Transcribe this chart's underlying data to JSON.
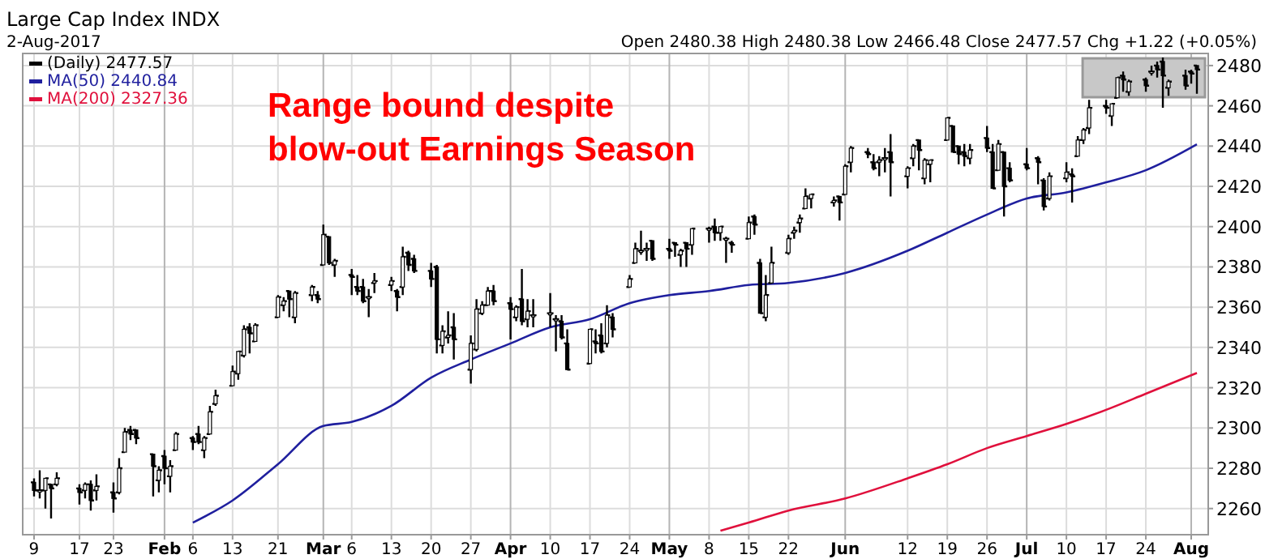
{
  "chart_data": {
    "type": "candlestick",
    "title": "Large Cap Index INDX",
    "subtitle": "2-Aug-2017",
    "annotations": [
      "Open 2480.38 High 2480.38 Low 2466.48 Close 2477.57 Chg +1.22 (+0.05%)",
      "Range bound despite\nblow-out Earnings Season"
    ],
    "x": [
      "2017-01-09",
      "2017-01-10",
      "2017-01-11",
      "2017-01-12",
      "2017-01-13",
      "2017-01-17",
      "2017-01-18",
      "2017-01-19",
      "2017-01-20",
      "2017-01-23",
      "2017-01-24",
      "2017-01-25",
      "2017-01-26",
      "2017-01-27",
      "2017-01-30",
      "2017-01-31",
      "2017-02-01",
      "2017-02-02",
      "2017-02-03",
      "2017-02-06",
      "2017-02-07",
      "2017-02-08",
      "2017-02-09",
      "2017-02-10",
      "2017-02-13",
      "2017-02-14",
      "2017-02-15",
      "2017-02-16",
      "2017-02-17",
      "2017-02-21",
      "2017-02-22",
      "2017-02-23",
      "2017-02-24",
      "2017-02-27",
      "2017-02-28",
      "2017-03-01",
      "2017-03-02",
      "2017-03-03",
      "2017-03-06",
      "2017-03-07",
      "2017-03-08",
      "2017-03-09",
      "2017-03-10",
      "2017-03-13",
      "2017-03-14",
      "2017-03-15",
      "2017-03-16",
      "2017-03-17",
      "2017-03-20",
      "2017-03-21",
      "2017-03-22",
      "2017-03-23",
      "2017-03-24",
      "2017-03-27",
      "2017-03-28",
      "2017-03-29",
      "2017-03-30",
      "2017-03-31",
      "2017-04-03",
      "2017-04-04",
      "2017-04-05",
      "2017-04-06",
      "2017-04-07",
      "2017-04-10",
      "2017-04-11",
      "2017-04-12",
      "2017-04-13",
      "2017-04-17",
      "2017-04-18",
      "2017-04-19",
      "2017-04-20",
      "2017-04-21",
      "2017-04-24",
      "2017-04-25",
      "2017-04-26",
      "2017-04-27",
      "2017-04-28",
      "2017-05-01",
      "2017-05-02",
      "2017-05-03",
      "2017-05-04",
      "2017-05-05",
      "2017-05-08",
      "2017-05-09",
      "2017-05-10",
      "2017-05-11",
      "2017-05-12",
      "2017-05-15",
      "2017-05-16",
      "2017-05-17",
      "2017-05-18",
      "2017-05-19",
      "2017-05-22",
      "2017-05-23",
      "2017-05-24",
      "2017-05-25",
      "2017-05-26",
      "2017-05-30",
      "2017-05-31",
      "2017-06-01",
      "2017-06-02",
      "2017-06-05",
      "2017-06-06",
      "2017-06-07",
      "2017-06-08",
      "2017-06-09",
      "2017-06-12",
      "2017-06-13",
      "2017-06-14",
      "2017-06-15",
      "2017-06-16",
      "2017-06-19",
      "2017-06-20",
      "2017-06-21",
      "2017-06-22",
      "2017-06-23",
      "2017-06-26",
      "2017-06-27",
      "2017-06-28",
      "2017-06-29",
      "2017-06-30",
      "2017-07-03",
      "2017-07-05",
      "2017-07-06",
      "2017-07-07",
      "2017-07-10",
      "2017-07-11",
      "2017-07-12",
      "2017-07-13",
      "2017-07-14",
      "2017-07-17",
      "2017-07-18",
      "2017-07-19",
      "2017-07-20",
      "2017-07-21",
      "2017-07-24",
      "2017-07-25",
      "2017-07-26",
      "2017-07-27",
      "2017-07-28",
      "2017-07-31",
      "2017-08-01",
      "2017-08-02"
    ],
    "xlim": [
      "2017-01-07",
      "2017-08-04"
    ],
    "series": [
      {
        "name": "(Daily) 2477.57",
        "color": "#000000",
        "type": "candlestick",
        "ohlc": [
          [
            2273,
            2275,
            2266,
            2269
          ],
          [
            2269,
            2279,
            2265,
            2269
          ],
          [
            2269,
            2275,
            2260,
            2275
          ],
          [
            2272,
            2272,
            2255,
            2270
          ],
          [
            2272,
            2278,
            2271,
            2275
          ],
          [
            2270,
            2272,
            2262,
            2268
          ],
          [
            2269,
            2273,
            2265,
            2272
          ],
          [
            2272,
            2274,
            2259,
            2264
          ],
          [
            2269,
            2277,
            2264,
            2271
          ],
          [
            2268,
            2273,
            2258,
            2265
          ],
          [
            2268,
            2285,
            2267,
            2280
          ],
          [
            2288,
            2300,
            2288,
            2298
          ],
          [
            2299,
            2301,
            2294,
            2297
          ],
          [
            2299,
            2299,
            2292,
            2295
          ],
          [
            2287,
            2287,
            2266,
            2281
          ],
          [
            2274,
            2281,
            2268,
            2279
          ],
          [
            2286,
            2289,
            2272,
            2280
          ],
          [
            2276,
            2284,
            2268,
            2281
          ],
          [
            2289,
            2298,
            2289,
            2297
          ],
          [
            2295,
            2296,
            2289,
            2293
          ],
          [
            2297,
            2301,
            2292,
            2293
          ],
          [
            2289,
            2296,
            2285,
            2295
          ],
          [
            2297,
            2311,
            2297,
            2308
          ],
          [
            2312,
            2319,
            2311,
            2316
          ],
          [
            2321,
            2331,
            2321,
            2328
          ],
          [
            2327,
            2338,
            2324,
            2338
          ],
          [
            2336,
            2351,
            2335,
            2349
          ],
          [
            2350,
            2352,
            2337,
            2347
          ],
          [
            2343,
            2352,
            2343,
            2351
          ],
          [
            2355,
            2366,
            2355,
            2365
          ],
          [
            2361,
            2365,
            2358,
            2363
          ],
          [
            2368,
            2368,
            2355,
            2364
          ],
          [
            2355,
            2368,
            2352,
            2367
          ],
          [
            2366,
            2371,
            2363,
            2370
          ],
          [
            2366,
            2368,
            2362,
            2364
          ],
          [
            2381,
            2401,
            2381,
            2396
          ],
          [
            2395,
            2395,
            2381,
            2382
          ],
          [
            2381,
            2384,
            2375,
            2383
          ],
          [
            2376,
            2379,
            2366,
            2375
          ],
          [
            2370,
            2376,
            2366,
            2368
          ],
          [
            2370,
            2374,
            2362,
            2363
          ],
          [
            2365,
            2369,
            2355,
            2365
          ],
          [
            2372,
            2377,
            2367,
            2373
          ],
          [
            2371,
            2375,
            2368,
            2373
          ],
          [
            2368,
            2369,
            2358,
            2365
          ],
          [
            2370,
            2390,
            2366,
            2385
          ],
          [
            2387,
            2388,
            2378,
            2381
          ],
          [
            2384,
            2386,
            2377,
            2378
          ],
          [
            2378,
            2382,
            2370,
            2374
          ],
          [
            2380,
            2381,
            2337,
            2344
          ],
          [
            2341,
            2351,
            2337,
            2348
          ],
          [
            2345,
            2358,
            2342,
            2346
          ],
          [
            2350,
            2357,
            2334,
            2344
          ],
          [
            2329,
            2346,
            2322,
            2342
          ],
          [
            2339,
            2364,
            2338,
            2359
          ],
          [
            2357,
            2363,
            2356,
            2361
          ],
          [
            2361,
            2370,
            2361,
            2368
          ],
          [
            2368,
            2371,
            2361,
            2363
          ],
          [
            2362,
            2365,
            2344,
            2359
          ],
          [
            2355,
            2361,
            2353,
            2360
          ],
          [
            2364,
            2379,
            2351,
            2353
          ],
          [
            2354,
            2364,
            2350,
            2358
          ],
          [
            2356,
            2364,
            2350,
            2356
          ],
          [
            2357,
            2367,
            2350,
            2357
          ],
          [
            2354,
            2356,
            2338,
            2354
          ],
          [
            2353,
            2356,
            2344,
            2345
          ],
          [
            2342,
            2349,
            2329,
            2329
          ],
          [
            2332,
            2349,
            2332,
            2349
          ],
          [
            2343,
            2349,
            2337,
            2342
          ],
          [
            2346,
            2352,
            2337,
            2338
          ],
          [
            2342,
            2361,
            2340,
            2356
          ],
          [
            2355,
            2357,
            2345,
            2349
          ],
          [
            2370,
            2376,
            2370,
            2374
          ],
          [
            2382,
            2392,
            2382,
            2389
          ],
          [
            2388,
            2398,
            2386,
            2388
          ],
          [
            2389,
            2392,
            2383,
            2389
          ],
          [
            2393,
            2393,
            2383,
            2384
          ],
          [
            2389,
            2394,
            2384,
            2388
          ],
          [
            2392,
            2392,
            2385,
            2391
          ],
          [
            2386,
            2389,
            2380,
            2388
          ],
          [
            2392,
            2392,
            2380,
            2389
          ],
          [
            2391,
            2399,
            2386,
            2399
          ],
          [
            2399,
            2400,
            2392,
            2399
          ],
          [
            2400,
            2404,
            2393,
            2397
          ],
          [
            2397,
            2400,
            2393,
            2400
          ],
          [
            2394,
            2395,
            2382,
            2394
          ],
          [
            2392,
            2393,
            2387,
            2391
          ],
          [
            2394,
            2405,
            2394,
            2402
          ],
          [
            2405,
            2406,
            2396,
            2401
          ],
          [
            2382,
            2384,
            2357,
            2357
          ],
          [
            2355,
            2376,
            2353,
            2366
          ],
          [
            2372,
            2390,
            2372,
            2382
          ],
          [
            2387,
            2396,
            2386,
            2394
          ],
          [
            2397,
            2400,
            2394,
            2398
          ],
          [
            2402,
            2406,
            2397,
            2404
          ],
          [
            2409,
            2419,
            2409,
            2415
          ],
          [
            2414,
            2416,
            2409,
            2416
          ],
          [
            2412,
            2415,
            2410,
            2413
          ],
          [
            2415,
            2415,
            2403,
            2412
          ],
          [
            2416,
            2431,
            2416,
            2430
          ],
          [
            2432,
            2440,
            2427,
            2439
          ],
          [
            2437,
            2439,
            2434,
            2436
          ],
          [
            2432,
            2436,
            2428,
            2429
          ],
          [
            2432,
            2435,
            2425,
            2433
          ],
          [
            2434,
            2439,
            2427,
            2434
          ],
          [
            2437,
            2446,
            2415,
            2432
          ],
          [
            2425,
            2430,
            2419,
            2429
          ],
          [
            2434,
            2441,
            2430,
            2440
          ],
          [
            2443,
            2443,
            2428,
            2438
          ],
          [
            2424,
            2434,
            2421,
            2433
          ],
          [
            2431,
            2433,
            2422,
            2433
          ],
          [
            2443,
            2454,
            2443,
            2454
          ],
          [
            2450,
            2450,
            2437,
            2437
          ],
          [
            2440,
            2440,
            2431,
            2436
          ],
          [
            2437,
            2441,
            2430,
            2435
          ],
          [
            2434,
            2441,
            2431,
            2438
          ],
          [
            2444,
            2450,
            2437,
            2439
          ],
          [
            2437,
            2441,
            2419,
            2419
          ],
          [
            2428,
            2443,
            2428,
            2441
          ],
          [
            2437,
            2437,
            2405,
            2420
          ],
          [
            2429,
            2432,
            2422,
            2423
          ],
          [
            2431,
            2439,
            2428,
            2429
          ],
          [
            2434,
            2435,
            2421,
            2432
          ],
          [
            2423,
            2424,
            2408,
            2410
          ],
          [
            2414,
            2427,
            2413,
            2425
          ],
          [
            2424,
            2432,
            2422,
            2427
          ],
          [
            2426,
            2429,
            2412,
            2425
          ],
          [
            2435,
            2445,
            2435,
            2443
          ],
          [
            2443,
            2449,
            2441,
            2448
          ],
          [
            2449,
            2463,
            2446,
            2459
          ],
          [
            2460,
            2463,
            2456,
            2459
          ],
          [
            2455,
            2461,
            2450,
            2461
          ],
          [
            2464,
            2474,
            2464,
            2474
          ],
          [
            2475,
            2477,
            2467,
            2473
          ],
          [
            2467,
            2473,
            2465,
            2472
          ],
          [
            2473,
            2474,
            2467,
            2470
          ],
          [
            2477,
            2480,
            2475,
            2477
          ],
          [
            2480,
            2482,
            2474,
            2478
          ],
          [
            2482,
            2484,
            2459,
            2475
          ],
          [
            2469,
            2473,
            2465,
            2472
          ],
          [
            2475,
            2478,
            2468,
            2470
          ],
          [
            2477,
            2478,
            2471,
            2476
          ],
          [
            2480,
            2480,
            2466,
            2478
          ]
        ]
      },
      {
        "name": "MA(50) 2440.84",
        "color": "#1f1f9e",
        "type": "line",
        "x": [
          "2017-02-06",
          "2017-02-13",
          "2017-02-21",
          "2017-03-01",
          "2017-03-06",
          "2017-03-13",
          "2017-03-20",
          "2017-03-27",
          "2017-04-03",
          "2017-04-10",
          "2017-04-17",
          "2017-04-24",
          "2017-05-01",
          "2017-05-08",
          "2017-05-15",
          "2017-05-22",
          "2017-06-01",
          "2017-06-12",
          "2017-06-19",
          "2017-06-26",
          "2017-07-03",
          "2017-07-10",
          "2017-07-17",
          "2017-07-24",
          "2017-08-02"
        ],
        "values": [
          2253,
          2264,
          2282,
          2301,
          2303,
          2311,
          2325,
          2334,
          2342,
          2350,
          2354,
          2362,
          2366,
          2368,
          2371,
          2372,
          2377,
          2388,
          2397,
          2406,
          2414,
          2417,
          2422,
          2428,
          2440.84
        ]
      },
      {
        "name": "MA(200) 2327.36",
        "color": "#e0103c",
        "type": "line",
        "x": [
          "2017-05-10",
          "2017-05-15",
          "2017-05-22",
          "2017-06-01",
          "2017-06-12",
          "2017-06-19",
          "2017-06-26",
          "2017-07-03",
          "2017-07-10",
          "2017-07-17",
          "2017-07-24",
          "2017-08-02"
        ],
        "values": [
          2249,
          2253,
          2259,
          2265,
          2275,
          2282,
          2290,
          2296,
          2302,
          2309,
          2317,
          2327.36
        ]
      }
    ],
    "ylim": [
      2247,
      2486
    ],
    "yticks": [
      2260,
      2280,
      2300,
      2320,
      2340,
      2360,
      2380,
      2400,
      2420,
      2440,
      2460,
      2480
    ],
    "xticks": [
      {
        "value": "2017-01-09",
        "label": "9"
      },
      {
        "value": "2017-01-17",
        "label": "17"
      },
      {
        "value": "2017-01-23",
        "label": "23"
      },
      {
        "value": "2017-02-01",
        "label": "Feb"
      },
      {
        "value": "2017-02-06",
        "label": "6"
      },
      {
        "value": "2017-02-13",
        "label": "13"
      },
      {
        "value": "2017-02-21",
        "label": "21"
      },
      {
        "value": "2017-03-01",
        "label": "Mar"
      },
      {
        "value": "2017-03-06",
        "label": "6"
      },
      {
        "value": "2017-03-13",
        "label": "13"
      },
      {
        "value": "2017-03-20",
        "label": "20"
      },
      {
        "value": "2017-03-27",
        "label": "27"
      },
      {
        "value": "2017-04-03",
        "label": "Apr"
      },
      {
        "value": "2017-04-10",
        "label": "10"
      },
      {
        "value": "2017-04-17",
        "label": "17"
      },
      {
        "value": "2017-04-24",
        "label": "24"
      },
      {
        "value": "2017-05-01",
        "label": "May"
      },
      {
        "value": "2017-05-08",
        "label": "8"
      },
      {
        "value": "2017-05-15",
        "label": "15"
      },
      {
        "value": "2017-05-22",
        "label": "22"
      },
      {
        "value": "2017-06-01",
        "label": "Jun"
      },
      {
        "value": "2017-06-12",
        "label": "12"
      },
      {
        "value": "2017-06-19",
        "label": "19"
      },
      {
        "value": "2017-06-26",
        "label": "26"
      },
      {
        "value": "2017-07-03",
        "label": "Jul"
      },
      {
        "value": "2017-07-10",
        "label": "10"
      },
      {
        "value": "2017-07-17",
        "label": "17"
      },
      {
        "value": "2017-07-24",
        "label": "24"
      },
      {
        "value": "2017-08-01",
        "label": "Aug"
      }
    ],
    "grid": true,
    "legend": "top left"
  }
}
